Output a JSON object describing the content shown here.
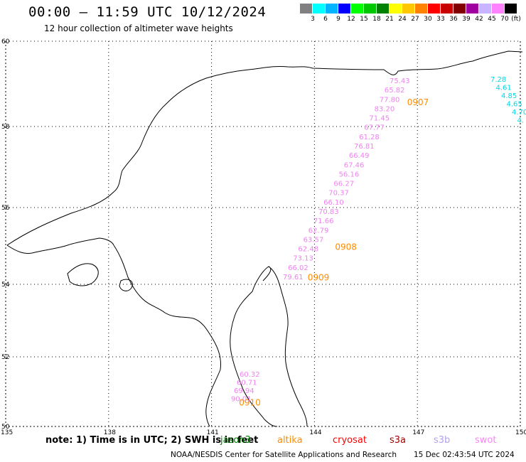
{
  "header": {
    "title": "00:00 – 11:59 UTC 10/12/2024",
    "subtitle": "12 hour collection of altimeter wave heights"
  },
  "legend": {
    "unit": "(ft)",
    "colors": [
      "#808080",
      "#00ffff",
      "#00b4ff",
      "#0000ff",
      "#00ff00",
      "#00c800",
      "#008200",
      "#ffff00",
      "#ffc800",
      "#ff8200",
      "#ff0000",
      "#c80000",
      "#820000",
      "#a000a0",
      "#c8b4ff",
      "#ff82ff",
      "#000000"
    ],
    "ticks": [
      "3",
      "6",
      "9",
      "12",
      "15",
      "18",
      "21",
      "24",
      "27",
      "30",
      "33",
      "36",
      "39",
      "42",
      "45",
      "70"
    ]
  },
  "map": {
    "lat_labels": [
      "60",
      "58",
      "56",
      "54",
      "52",
      "50"
    ],
    "lon_labels": [
      "135",
      "138",
      "141",
      "144",
      "147",
      "150"
    ],
    "pass_labels": [
      {
        "text": "0907",
        "lon": 146.7,
        "lat": 58.5
      },
      {
        "text": "0908",
        "lon": 144.6,
        "lat": 54.9
      },
      {
        "text": "0909",
        "lon": 143.8,
        "lat": 54.1
      },
      {
        "text": "0910",
        "lon": 141.8,
        "lat": 50.6
      }
    ],
    "pass_color": "#ff8c00",
    "track_color": "#ee82ee",
    "track_east_color": "#00d8e8",
    "tracks": [
      {
        "values": [
          "75.43",
          "65.82",
          "77.80",
          "83.20",
          "71.45",
          "67.77",
          "61.28",
          "76.81",
          "66.49",
          "67.46",
          "56.16",
          "66.27",
          "70.37",
          "66.10",
          "70.83",
          "71.66",
          "62.79",
          "63.57",
          "62.48",
          "73.13",
          "66.02",
          "79.61"
        ]
      },
      {
        "values": [
          "60.32",
          "60.71",
          "69.94",
          "90.01"
        ]
      }
    ],
    "east_track": {
      "values": [
        "7.28",
        "4.61",
        "4.85",
        "4.65",
        "4.70",
        "4."
      ]
    }
  },
  "footer": {
    "note": "note: 1) Time is in UTC; 2) SWH is in feet",
    "satellites": [
      {
        "name": "jason3",
        "color": "#008000"
      },
      {
        "name": "altika",
        "color": "#ff8c00"
      },
      {
        "name": "cryosat",
        "color": "#ff0000"
      },
      {
        "name": "s3a",
        "color": "#a00000"
      },
      {
        "name": "s3b",
        "color": "#b4a0f0"
      },
      {
        "name": "swot",
        "color": "#ff82ff"
      }
    ],
    "credit": "NOAA/NESDIS Center for Satellite Applications and Research",
    "generated": "15 Dec 02:43:54 UTC 2024"
  }
}
